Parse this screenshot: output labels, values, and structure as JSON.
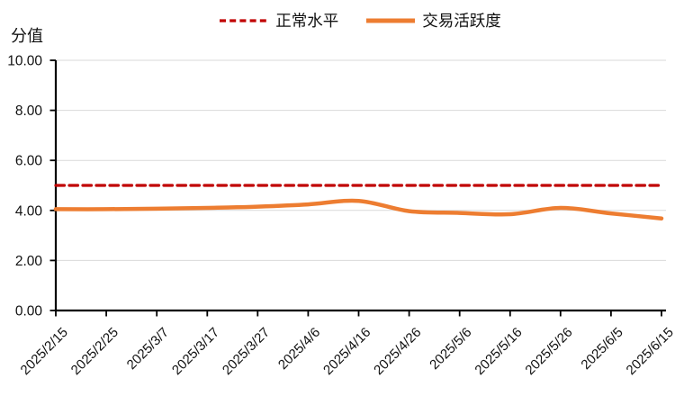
{
  "chart_data": {
    "type": "line",
    "title": "",
    "ylabel": "分值",
    "xlabel": "",
    "categories": [
      "2025/2/15",
      "2025/2/25",
      "2025/3/7",
      "2025/3/17",
      "2025/3/27",
      "2025/4/6",
      "2025/4/16",
      "2025/4/26",
      "2025/5/6",
      "2025/5/16",
      "2025/5/26",
      "2025/6/5",
      "2025/6/15"
    ],
    "series": [
      {
        "name": "正常水平",
        "color": "#C00000",
        "dash": true,
        "smooth": false,
        "values": [
          5.0,
          5.0,
          5.0,
          5.0,
          5.0,
          5.0,
          5.0,
          5.0,
          5.0,
          5.0,
          5.0,
          5.0,
          5.0
        ]
      },
      {
        "name": "交易活跃度",
        "color": "#ED7D31",
        "dash": false,
        "smooth": true,
        "values": [
          4.05,
          4.05,
          4.07,
          4.1,
          4.15,
          4.24,
          4.38,
          3.97,
          3.9,
          3.85,
          4.1,
          3.88,
          3.68
        ]
      }
    ],
    "ylim": [
      0,
      10
    ],
    "yticks": {
      "values": [
        0,
        2,
        4,
        6,
        8,
        10
      ],
      "labels": [
        "0.00",
        "2.00",
        "4.00",
        "6.00",
        "8.00",
        "10.00"
      ]
    },
    "grid": true,
    "legend_position": "top",
    "gridline_color": "#D9D9D9",
    "axis_color": "#000000"
  }
}
